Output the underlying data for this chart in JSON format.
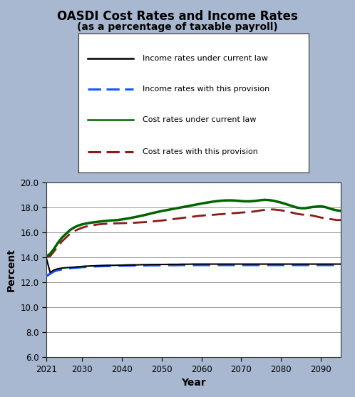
{
  "title": "OASDI Cost Rates and Income Rates",
  "subtitle": "(as a percentage of taxable payroll)",
  "xlabel": "Year",
  "ylabel": "Percent",
  "bg_color": "#a8b8d0",
  "plot_bg_color": "#ffffff",
  "ylim": [
    6.0,
    20.0
  ],
  "yticks": [
    6.0,
    8.0,
    10.0,
    12.0,
    14.0,
    16.0,
    18.0,
    20.0
  ],
  "xticks": [
    2021,
    2030,
    2040,
    2050,
    2060,
    2070,
    2080,
    2090
  ],
  "years": [
    2021,
    2022,
    2023,
    2024,
    2025,
    2026,
    2027,
    2028,
    2029,
    2030,
    2031,
    2032,
    2033,
    2034,
    2035,
    2036,
    2037,
    2038,
    2039,
    2040,
    2041,
    2042,
    2043,
    2044,
    2045,
    2046,
    2047,
    2048,
    2049,
    2050,
    2051,
    2052,
    2053,
    2054,
    2055,
    2056,
    2057,
    2058,
    2059,
    2060,
    2061,
    2062,
    2063,
    2064,
    2065,
    2066,
    2067,
    2068,
    2069,
    2070,
    2071,
    2072,
    2073,
    2074,
    2075,
    2076,
    2077,
    2078,
    2079,
    2080,
    2081,
    2082,
    2083,
    2084,
    2085,
    2086,
    2087,
    2088,
    2089,
    2090,
    2091,
    2092,
    2093,
    2094,
    2095
  ],
  "income_current_law": [
    14.0,
    12.8,
    13.0,
    13.1,
    13.15,
    13.18,
    13.2,
    13.22,
    13.25,
    13.28,
    13.3,
    13.32,
    13.33,
    13.34,
    13.35,
    13.36,
    13.37,
    13.37,
    13.38,
    13.38,
    13.39,
    13.4,
    13.4,
    13.41,
    13.42,
    13.42,
    13.43,
    13.43,
    13.44,
    13.44,
    13.44,
    13.45,
    13.45,
    13.45,
    13.46,
    13.46,
    13.46,
    13.47,
    13.47,
    13.47,
    13.47,
    13.47,
    13.47,
    13.47,
    13.47,
    13.47,
    13.47,
    13.47,
    13.47,
    13.47,
    13.47,
    13.47,
    13.47,
    13.47,
    13.47,
    13.47,
    13.47,
    13.47,
    13.47,
    13.47,
    13.47,
    13.47,
    13.47,
    13.47,
    13.47,
    13.47,
    13.47,
    13.47,
    13.47,
    13.47,
    13.47,
    13.47,
    13.47,
    13.47,
    13.47
  ],
  "income_provision": [
    12.5,
    12.7,
    12.9,
    13.0,
    13.05,
    13.1,
    13.15,
    13.18,
    13.2,
    13.23,
    13.25,
    13.27,
    13.29,
    13.3,
    13.31,
    13.32,
    13.33,
    13.34,
    13.35,
    13.35,
    13.36,
    13.36,
    13.37,
    13.37,
    13.37,
    13.37,
    13.38,
    13.38,
    13.38,
    13.38,
    13.39,
    13.39,
    13.39,
    13.39,
    13.4,
    13.4,
    13.4,
    13.4,
    13.4,
    13.4,
    13.4,
    13.4,
    13.4,
    13.4,
    13.4,
    13.4,
    13.4,
    13.4,
    13.4,
    13.4,
    13.4,
    13.4,
    13.4,
    13.4,
    13.4,
    13.4,
    13.4,
    13.4,
    13.4,
    13.4,
    13.4,
    13.4,
    13.4,
    13.4,
    13.4,
    13.4,
    13.4,
    13.4,
    13.4,
    13.4,
    13.4,
    13.4,
    13.4,
    13.4,
    13.4
  ],
  "cost_current_law": [
    14.05,
    14.3,
    14.7,
    15.2,
    15.6,
    15.9,
    16.2,
    16.4,
    16.55,
    16.65,
    16.72,
    16.78,
    16.82,
    16.86,
    16.9,
    16.93,
    16.96,
    16.98,
    17.0,
    17.05,
    17.1,
    17.15,
    17.22,
    17.28,
    17.35,
    17.42,
    17.5,
    17.58,
    17.65,
    17.72,
    17.78,
    17.84,
    17.9,
    17.96,
    18.02,
    18.08,
    18.14,
    18.2,
    18.26,
    18.32,
    18.38,
    18.43,
    18.48,
    18.52,
    18.55,
    18.57,
    18.58,
    18.57,
    18.55,
    18.52,
    18.5,
    18.5,
    18.52,
    18.55,
    18.6,
    18.62,
    18.6,
    18.55,
    18.48,
    18.4,
    18.3,
    18.2,
    18.1,
    18.0,
    17.95,
    17.95,
    18.0,
    18.05,
    18.08,
    18.1,
    18.05,
    17.95,
    17.85,
    17.78,
    17.73
  ],
  "cost_provision": [
    14.05,
    14.1,
    14.5,
    14.95,
    15.3,
    15.6,
    15.9,
    16.1,
    16.25,
    16.38,
    16.48,
    16.55,
    16.6,
    16.65,
    16.68,
    16.7,
    16.72,
    16.73,
    16.74,
    16.75,
    16.76,
    16.77,
    16.78,
    16.8,
    16.82,
    16.84,
    16.87,
    16.9,
    16.93,
    16.96,
    17.0,
    17.04,
    17.08,
    17.12,
    17.16,
    17.2,
    17.24,
    17.28,
    17.32,
    17.35,
    17.38,
    17.4,
    17.42,
    17.45,
    17.47,
    17.5,
    17.53,
    17.55,
    17.57,
    17.6,
    17.62,
    17.65,
    17.68,
    17.72,
    17.78,
    17.82,
    17.85,
    17.85,
    17.82,
    17.78,
    17.72,
    17.65,
    17.58,
    17.5,
    17.45,
    17.42,
    17.4,
    17.35,
    17.28,
    17.2,
    17.15,
    17.1,
    17.05,
    17.0,
    17.0
  ],
  "income_current_color": "#000000",
  "income_provision_color": "#1a56ff",
  "cost_current_color": "#006400",
  "cost_provision_color": "#8b1a1a",
  "legend_labels": [
    "Income rates under current law",
    "Income rates with this provision",
    "Cost rates under current law",
    "Cost rates with this provision"
  ]
}
